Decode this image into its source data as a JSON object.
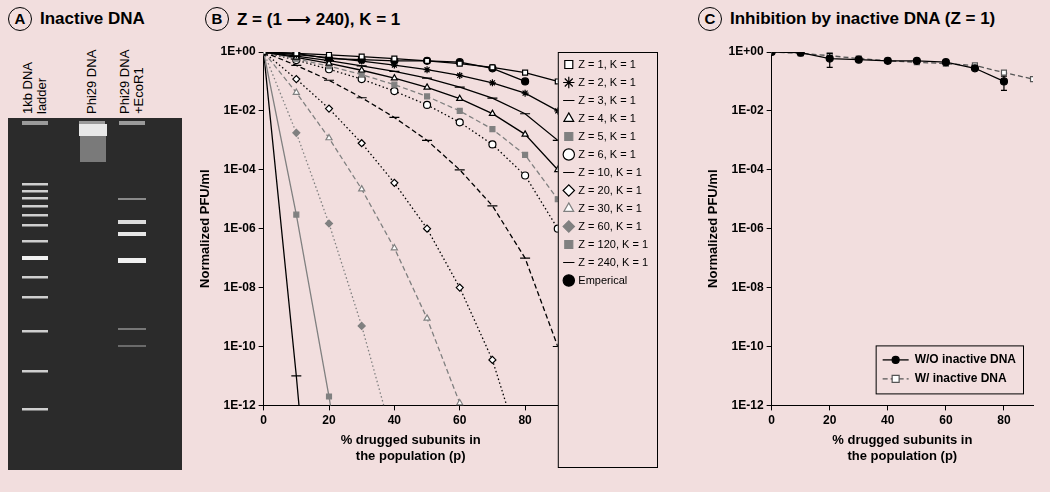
{
  "gel": {
    "panel": "A",
    "title": "Inactive DNA",
    "lanes": [
      [
        "1kb DNA",
        "ladder"
      ],
      [
        "Phi29 DNA"
      ],
      [
        "Phi29 DNA",
        "+EcoR1"
      ]
    ]
  },
  "chart_data": [
    {
      "panel": "B",
      "type": "line",
      "title": "Z = (1 ⟶ 240), K = 1",
      "x_label": [
        "% drugged subunits in",
        "the population (p)"
      ],
      "y_label": "Normalized PFU/ml",
      "log": "y",
      "grid": false,
      "legend": "right",
      "xlim": [
        0,
        90
      ],
      "xticks": [
        0,
        20,
        40,
        60,
        80
      ],
      "ylim": [
        1e-12,
        1
      ],
      "yticks": [
        {
          "value": 1,
          "label": "1E+00"
        },
        {
          "value": 0.01,
          "label": "1E-02"
        },
        {
          "value": 0.0001,
          "label": "1E-04"
        },
        {
          "value": 1e-06,
          "label": "1E-06"
        },
        {
          "value": 1e-08,
          "label": "1E-08"
        },
        {
          "value": 1e-10,
          "label": "1E-10"
        },
        {
          "value": 1e-12,
          "label": "1E-12"
        }
      ],
      "x": [
        0,
        10,
        20,
        30,
        40,
        50,
        60,
        70,
        80,
        90
      ],
      "series": [
        {
          "name": "Z = 1, K = 1",
          "color": "#000000",
          "marker": "square-open",
          "line_style": "solid",
          "values": [
            1,
            0.9,
            0.8,
            0.7,
            0.6,
            0.5,
            0.4,
            0.3,
            0.2,
            0.1
          ]
        },
        {
          "name": "Z = 2, K = 1",
          "color": "#000000",
          "marker": "star",
          "line_style": "solid",
          "values": [
            1,
            0.81,
            0.64,
            0.49,
            0.36,
            0.25,
            0.16,
            0.09,
            0.04,
            0.01
          ]
        },
        {
          "name": "Z = 3, K = 1",
          "color": "#000000",
          "marker": "dash",
          "line_style": "solid",
          "values": [
            1,
            0.73,
            0.51,
            0.34,
            0.22,
            0.13,
            0.064,
            0.027,
            0.008,
            0.001
          ]
        },
        {
          "name": "Z = 4, K = 1",
          "color": "#000000",
          "marker": "triangle-open",
          "line_style": "solid",
          "values": [
            1,
            0.66,
            0.41,
            0.24,
            0.13,
            0.063,
            0.026,
            0.0081,
            0.0016,
            0.0001
          ]
        },
        {
          "name": "Z = 5, K = 1",
          "color": "#808080",
          "marker": "square",
          "line_style": "dashed",
          "values": [
            1,
            0.59,
            0.33,
            0.17,
            0.078,
            0.031,
            0.01,
            0.0024,
            0.00032,
            1e-05
          ]
        },
        {
          "name": "Z = 6, K = 1",
          "color": "#000000",
          "marker": "circle-open",
          "line_style": "dotted",
          "values": [
            1,
            0.53,
            0.26,
            0.12,
            0.047,
            0.016,
            0.0041,
            0.00073,
            6.4e-05,
            1e-06
          ]
        },
        {
          "name": "Z = 10, K = 1",
          "color": "#000000",
          "marker": "dash",
          "line_style": "dashed",
          "values": [
            1,
            0.35,
            0.11,
            0.028,
            0.006,
            0.001,
            0.0001,
            6e-06,
            1e-07,
            1e-10
          ]
        },
        {
          "name": "Z = 20, K = 1",
          "color": "#000000",
          "marker": "diamond-open",
          "line_style": "dotted",
          "values": [
            1,
            0.12,
            0.012,
            0.0008,
            3.6e-05,
            1e-06,
            1e-08,
            3.5e-11,
            1e-14,
            null
          ]
        },
        {
          "name": "Z = 30, K = 1",
          "color": "#808080",
          "marker": "triangle-open",
          "line_style": "dashed",
          "values": [
            1,
            0.042,
            0.0012,
            2.2e-05,
            2.2e-07,
            9e-10,
            1.2e-12,
            2e-16,
            null,
            null
          ]
        },
        {
          "name": "Z = 60, K = 1",
          "color": "#808080",
          "marker": "diamond",
          "line_style": "dotted",
          "values": [
            1,
            0.0018,
            1.5e-06,
            5e-10,
            5e-14,
            null,
            null,
            null,
            null,
            null
          ]
        },
        {
          "name": "Z = 120, K = 1",
          "color": "#808080",
          "marker": "square",
          "line_style": "solid",
          "values": [
            1,
            3e-06,
            2e-12,
            2.5e-19,
            null,
            null,
            null,
            null,
            null,
            null
          ]
        },
        {
          "name": "Z = 240, K = 1",
          "color": "#000000",
          "marker": "dash",
          "line_style": "solid",
          "values": [
            1,
            1e-11,
            5e-24,
            null,
            null,
            null,
            null,
            null,
            null,
            null
          ]
        },
        {
          "name": "Emperical",
          "color": "#000000",
          "marker": "circle",
          "line_style": "solid",
          "values": [
            1,
            0.9,
            0.6,
            0.55,
            0.5,
            0.5,
            0.45,
            0.28,
            0.1,
            null
          ]
        }
      ]
    },
    {
      "panel": "C",
      "type": "line",
      "title": "Inhibition by inactive DNA (Z = 1)",
      "x_label": [
        "% drugged subunits in",
        "the population (p)"
      ],
      "y_label": "Normalized PFU/ml",
      "log": "y",
      "grid": false,
      "legend": "lower right",
      "xlim": [
        0,
        90
      ],
      "xticks": [
        0,
        20,
        40,
        60,
        80
      ],
      "ylim": [
        1e-12,
        1
      ],
      "yticks": [
        {
          "value": 1,
          "label": "1E+00"
        },
        {
          "value": 0.01,
          "label": "1E-02"
        },
        {
          "value": 0.0001,
          "label": "1E-04"
        },
        {
          "value": 1e-06,
          "label": "1E-06"
        },
        {
          "value": 1e-08,
          "label": "1E-08"
        },
        {
          "value": 1e-10,
          "label": "1E-10"
        },
        {
          "value": 1e-12,
          "label": "1E-12"
        }
      ],
      "x": [
        0,
        10,
        20,
        30,
        40,
        50,
        60,
        70,
        80,
        90
      ],
      "series": [
        {
          "name": "W/O inactive DNA",
          "color": "#000000",
          "marker": "circle",
          "line_style": "solid",
          "values": [
            1,
            0.95,
            0.6,
            0.55,
            0.5,
            0.5,
            0.45,
            0.28,
            0.1,
            null
          ],
          "errors": [
            null,
            null,
            0.3,
            null,
            null,
            null,
            null,
            null,
            0.05,
            null
          ]
        },
        {
          "name": "W/ inactive DNA",
          "color": "#555555",
          "marker": "square-open",
          "line_style": "dashed",
          "values": [
            1,
            0.9,
            0.75,
            0.6,
            0.5,
            0.45,
            0.4,
            0.35,
            0.2,
            0.12
          ]
        }
      ]
    }
  ]
}
